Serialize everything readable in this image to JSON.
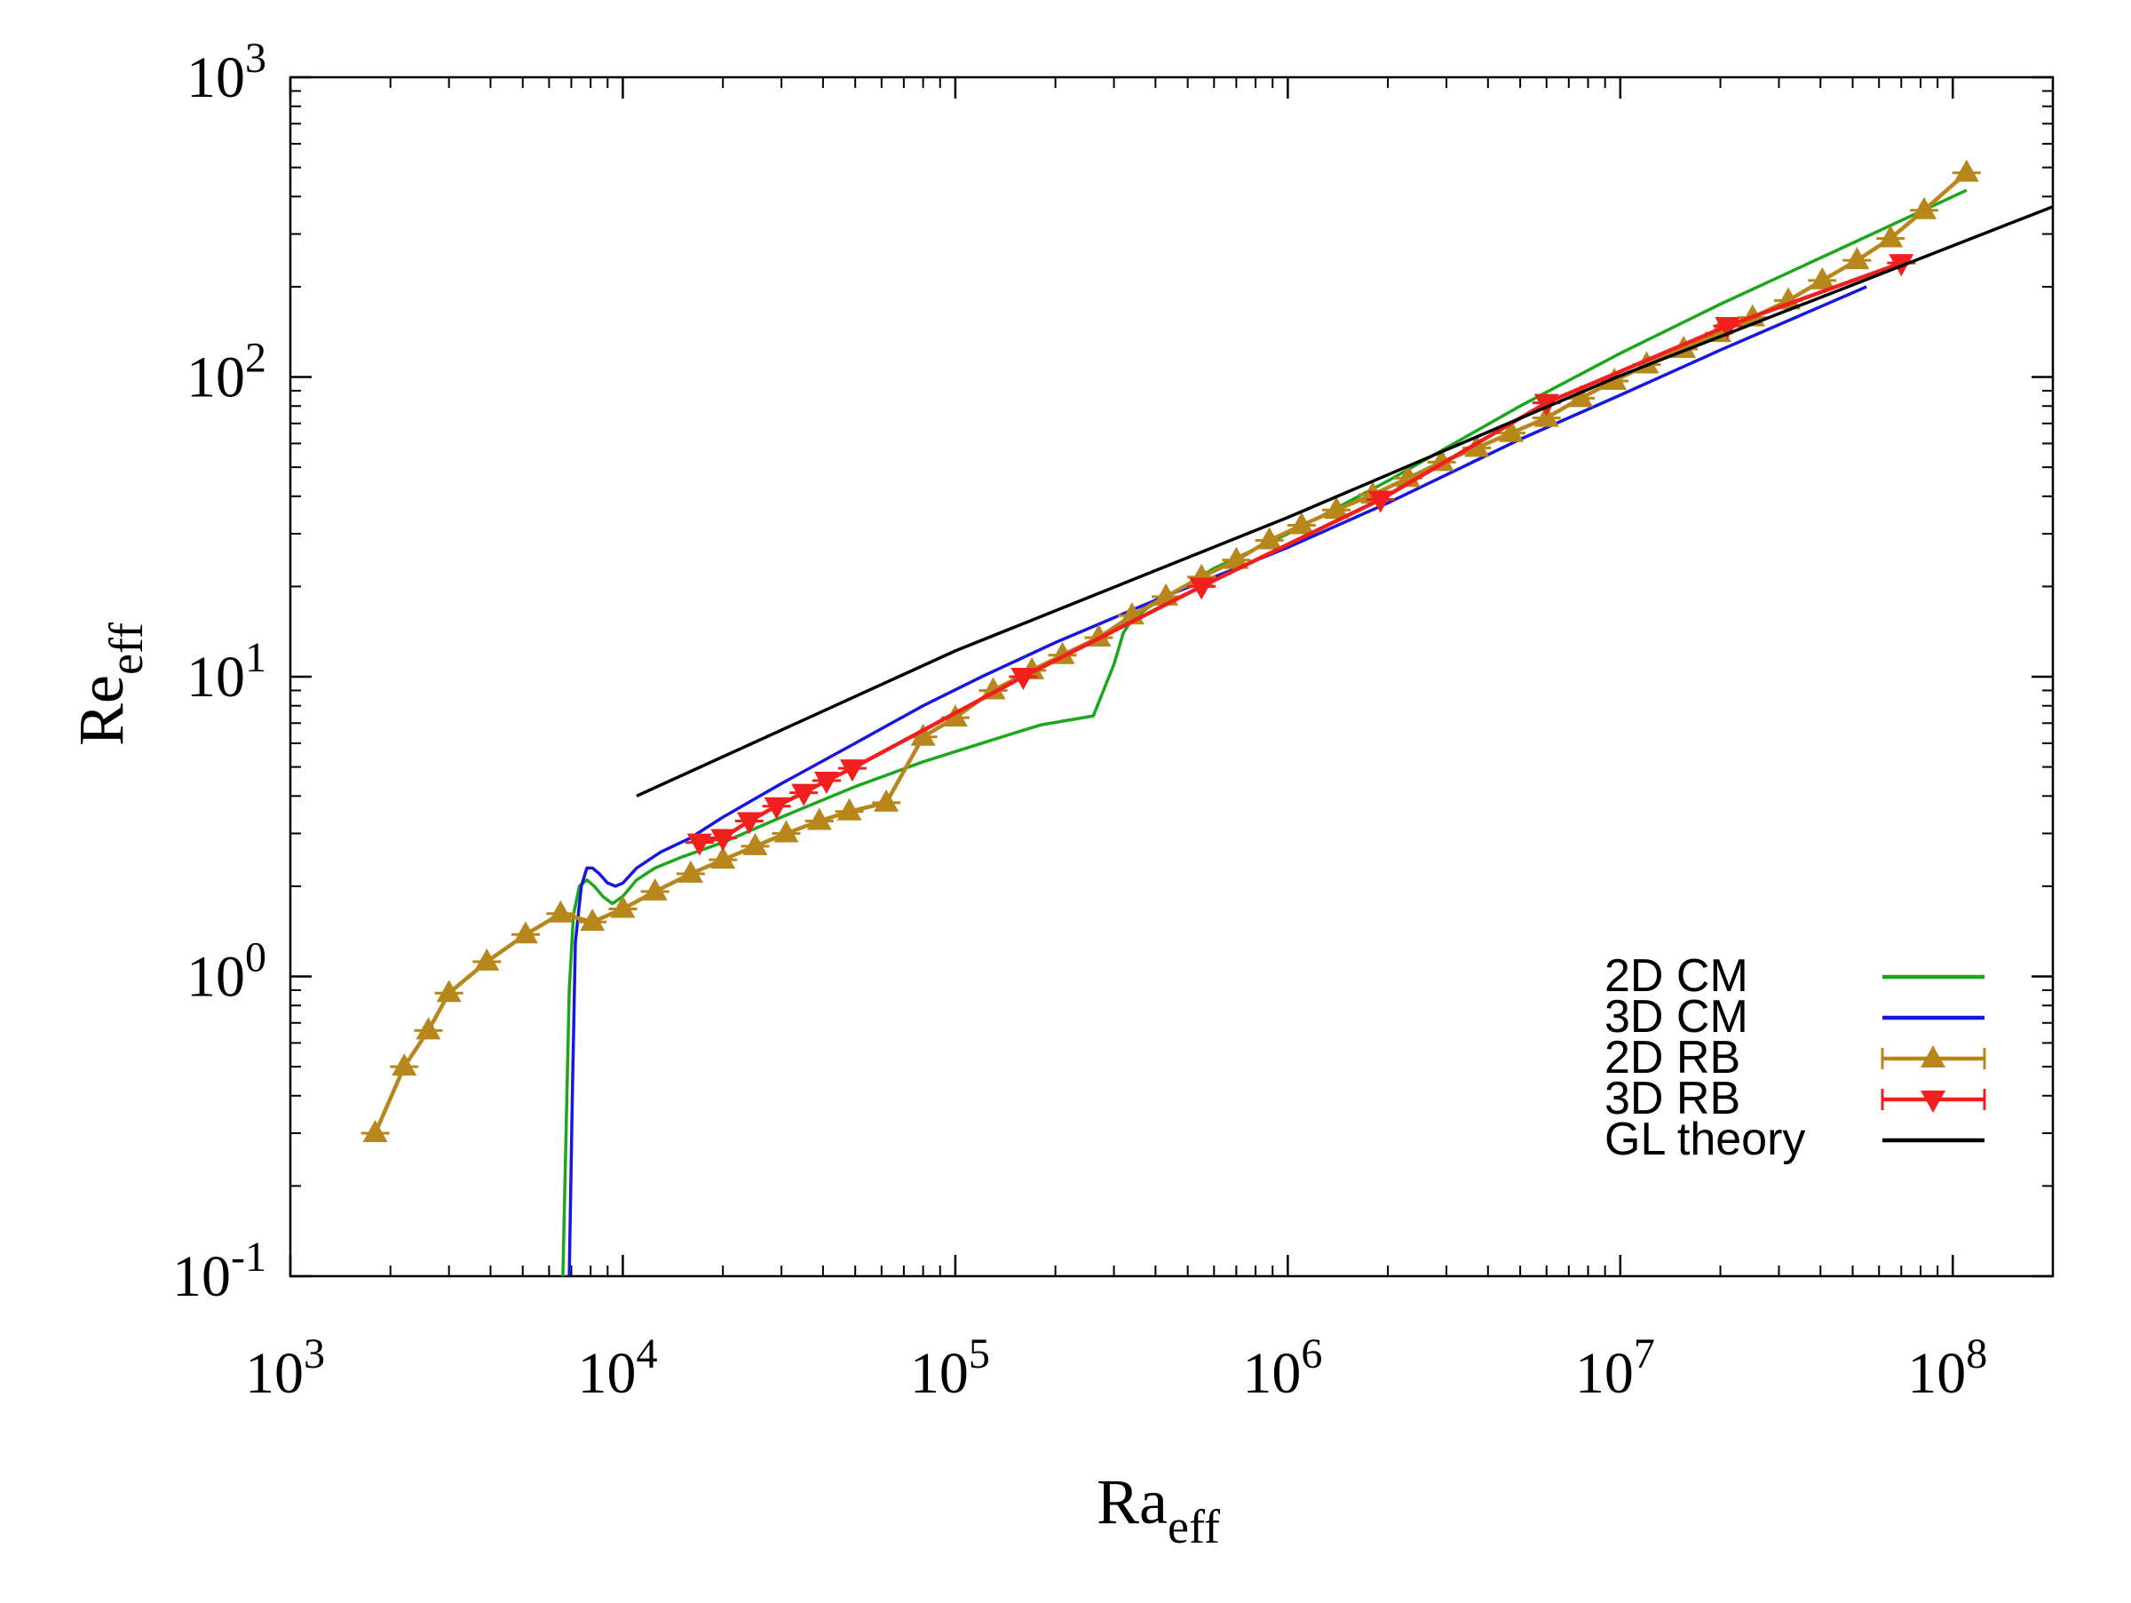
{
  "chart_data": {
    "type": "line",
    "title": "",
    "xlabel": "Ra",
    "xlabel_sub": "eff",
    "ylabel": "Re",
    "ylabel_sub": "eff",
    "xscale": "log",
    "yscale": "log",
    "xlim": [
      1000,
      200000000
    ],
    "ylim": [
      0.1,
      1000
    ],
    "grid": false,
    "legend_position": "bottom-right",
    "x_ticks": [
      {
        "base": "10",
        "exp": "3",
        "value": 1000
      },
      {
        "base": "10",
        "exp": "4",
        "value": 10000
      },
      {
        "base": "10",
        "exp": "5",
        "value": 100000
      },
      {
        "base": "10",
        "exp": "6",
        "value": 1000000
      },
      {
        "base": "10",
        "exp": "7",
        "value": 10000000
      },
      {
        "base": "10",
        "exp": "8",
        "value": 100000000
      }
    ],
    "y_ticks": [
      {
        "base": "10",
        "exp": "-1",
        "value": 0.1
      },
      {
        "base": "10",
        "exp": "0",
        "value": 1
      },
      {
        "base": "10",
        "exp": "1",
        "value": 10
      },
      {
        "base": "10",
        "exp": "2",
        "value": 100
      },
      {
        "base": "10",
        "exp": "3",
        "value": 1000
      }
    ],
    "series": [
      {
        "name": "2D CM",
        "color": "#1ca61c",
        "marker": "none",
        "x": [
          6600,
          6750,
          6900,
          7100,
          7400,
          7800,
          8200,
          8700,
          9300,
          10000,
          11000,
          12500,
          15000,
          20000,
          30000,
          50000,
          80000,
          120000,
          180000,
          260000,
          300000,
          320000,
          340000,
          380000,
          450000,
          600000,
          1000000,
          2000000,
          5000000,
          10000000,
          20000000,
          50000000,
          110000000
        ],
        "y": [
          0.1,
          0.3,
          0.9,
          1.6,
          2.0,
          2.1,
          2.0,
          1.85,
          1.75,
          1.85,
          2.1,
          2.3,
          2.5,
          2.8,
          3.4,
          4.3,
          5.2,
          6.0,
          6.9,
          7.4,
          11.0,
          14.0,
          15.5,
          17.0,
          19.0,
          23.0,
          30.0,
          45.0,
          80.0,
          120.0,
          175.0,
          280.0,
          420.0
        ]
      },
      {
        "name": "3D CM",
        "color": "#1717e0",
        "marker": "none",
        "x": [
          6900,
          7050,
          7200,
          7500,
          7800,
          8100,
          8500,
          9000,
          9500,
          10000,
          11000,
          13000,
          16000,
          20000,
          30000,
          50000,
          80000,
          120000,
          200000,
          400000,
          700000,
          1000000,
          2000000,
          5000000,
          10000000,
          20000000,
          55000000
        ],
        "y": [
          0.1,
          0.4,
          1.3,
          2.0,
          2.3,
          2.3,
          2.2,
          2.05,
          2.0,
          2.05,
          2.3,
          2.6,
          2.9,
          3.4,
          4.4,
          6.0,
          8.0,
          10.0,
          13.0,
          18.0,
          23.0,
          27.0,
          38.0,
          62.0,
          87.0,
          123.0,
          200.0
        ]
      },
      {
        "name": "2D RB",
        "color": "#b8871c",
        "marker": "triangle-up",
        "x": [
          1800,
          2200,
          2600,
          3000,
          3900,
          5100,
          6500,
          8100,
          10000,
          12500,
          16000,
          20000,
          25000,
          31000,
          39000,
          48000,
          62000,
          80000,
          100000,
          130000,
          170000,
          210000,
          270000,
          340000,
          430000,
          550000,
          700000,
          880000,
          1100000,
          1400000,
          1800000,
          2300000,
          2900000,
          3700000,
          4700000,
          6000000,
          7600000,
          9600000,
          12000000,
          15500000,
          19800000,
          25000000,
          32000000,
          40500000,
          51500000,
          65000000,
          82000000,
          110000000
        ],
        "y": [
          0.3,
          0.5,
          0.66,
          0.88,
          1.12,
          1.38,
          1.62,
          1.52,
          1.68,
          1.92,
          2.2,
          2.45,
          2.72,
          3.0,
          3.3,
          3.55,
          3.8,
          6.3,
          7.3,
          9.0,
          10.5,
          11.8,
          13.5,
          16.0,
          18.5,
          21.5,
          24.5,
          28.5,
          32.0,
          36.0,
          40.5,
          46.0,
          52.0,
          58.0,
          65.0,
          73.0,
          85.0,
          97.0,
          110.0,
          124.0,
          140.0,
          158.0,
          180.0,
          210.0,
          245.0,
          290.0,
          360.0,
          480.0
        ]
      },
      {
        "name": "3D RB",
        "color": "#f21f1f",
        "marker": "triangle-down",
        "x": [
          17000,
          20000,
          24000,
          29000,
          35000,
          41000,
          49000,
          160000,
          550000,
          1900000,
          6000000,
          21000000,
          70000000
        ],
        "y": [
          2.8,
          2.9,
          3.3,
          3.7,
          4.1,
          4.5,
          4.95,
          10.0,
          20.0,
          39.0,
          82.0,
          148.0,
          240.0
        ]
      },
      {
        "name": "GL theory",
        "color": "#000000",
        "marker": "none",
        "x": [
          11000,
          100000,
          1000000,
          10000000,
          200000000
        ],
        "y": [
          4.0,
          12.2,
          34.0,
          101.0,
          370.0
        ]
      }
    ]
  }
}
